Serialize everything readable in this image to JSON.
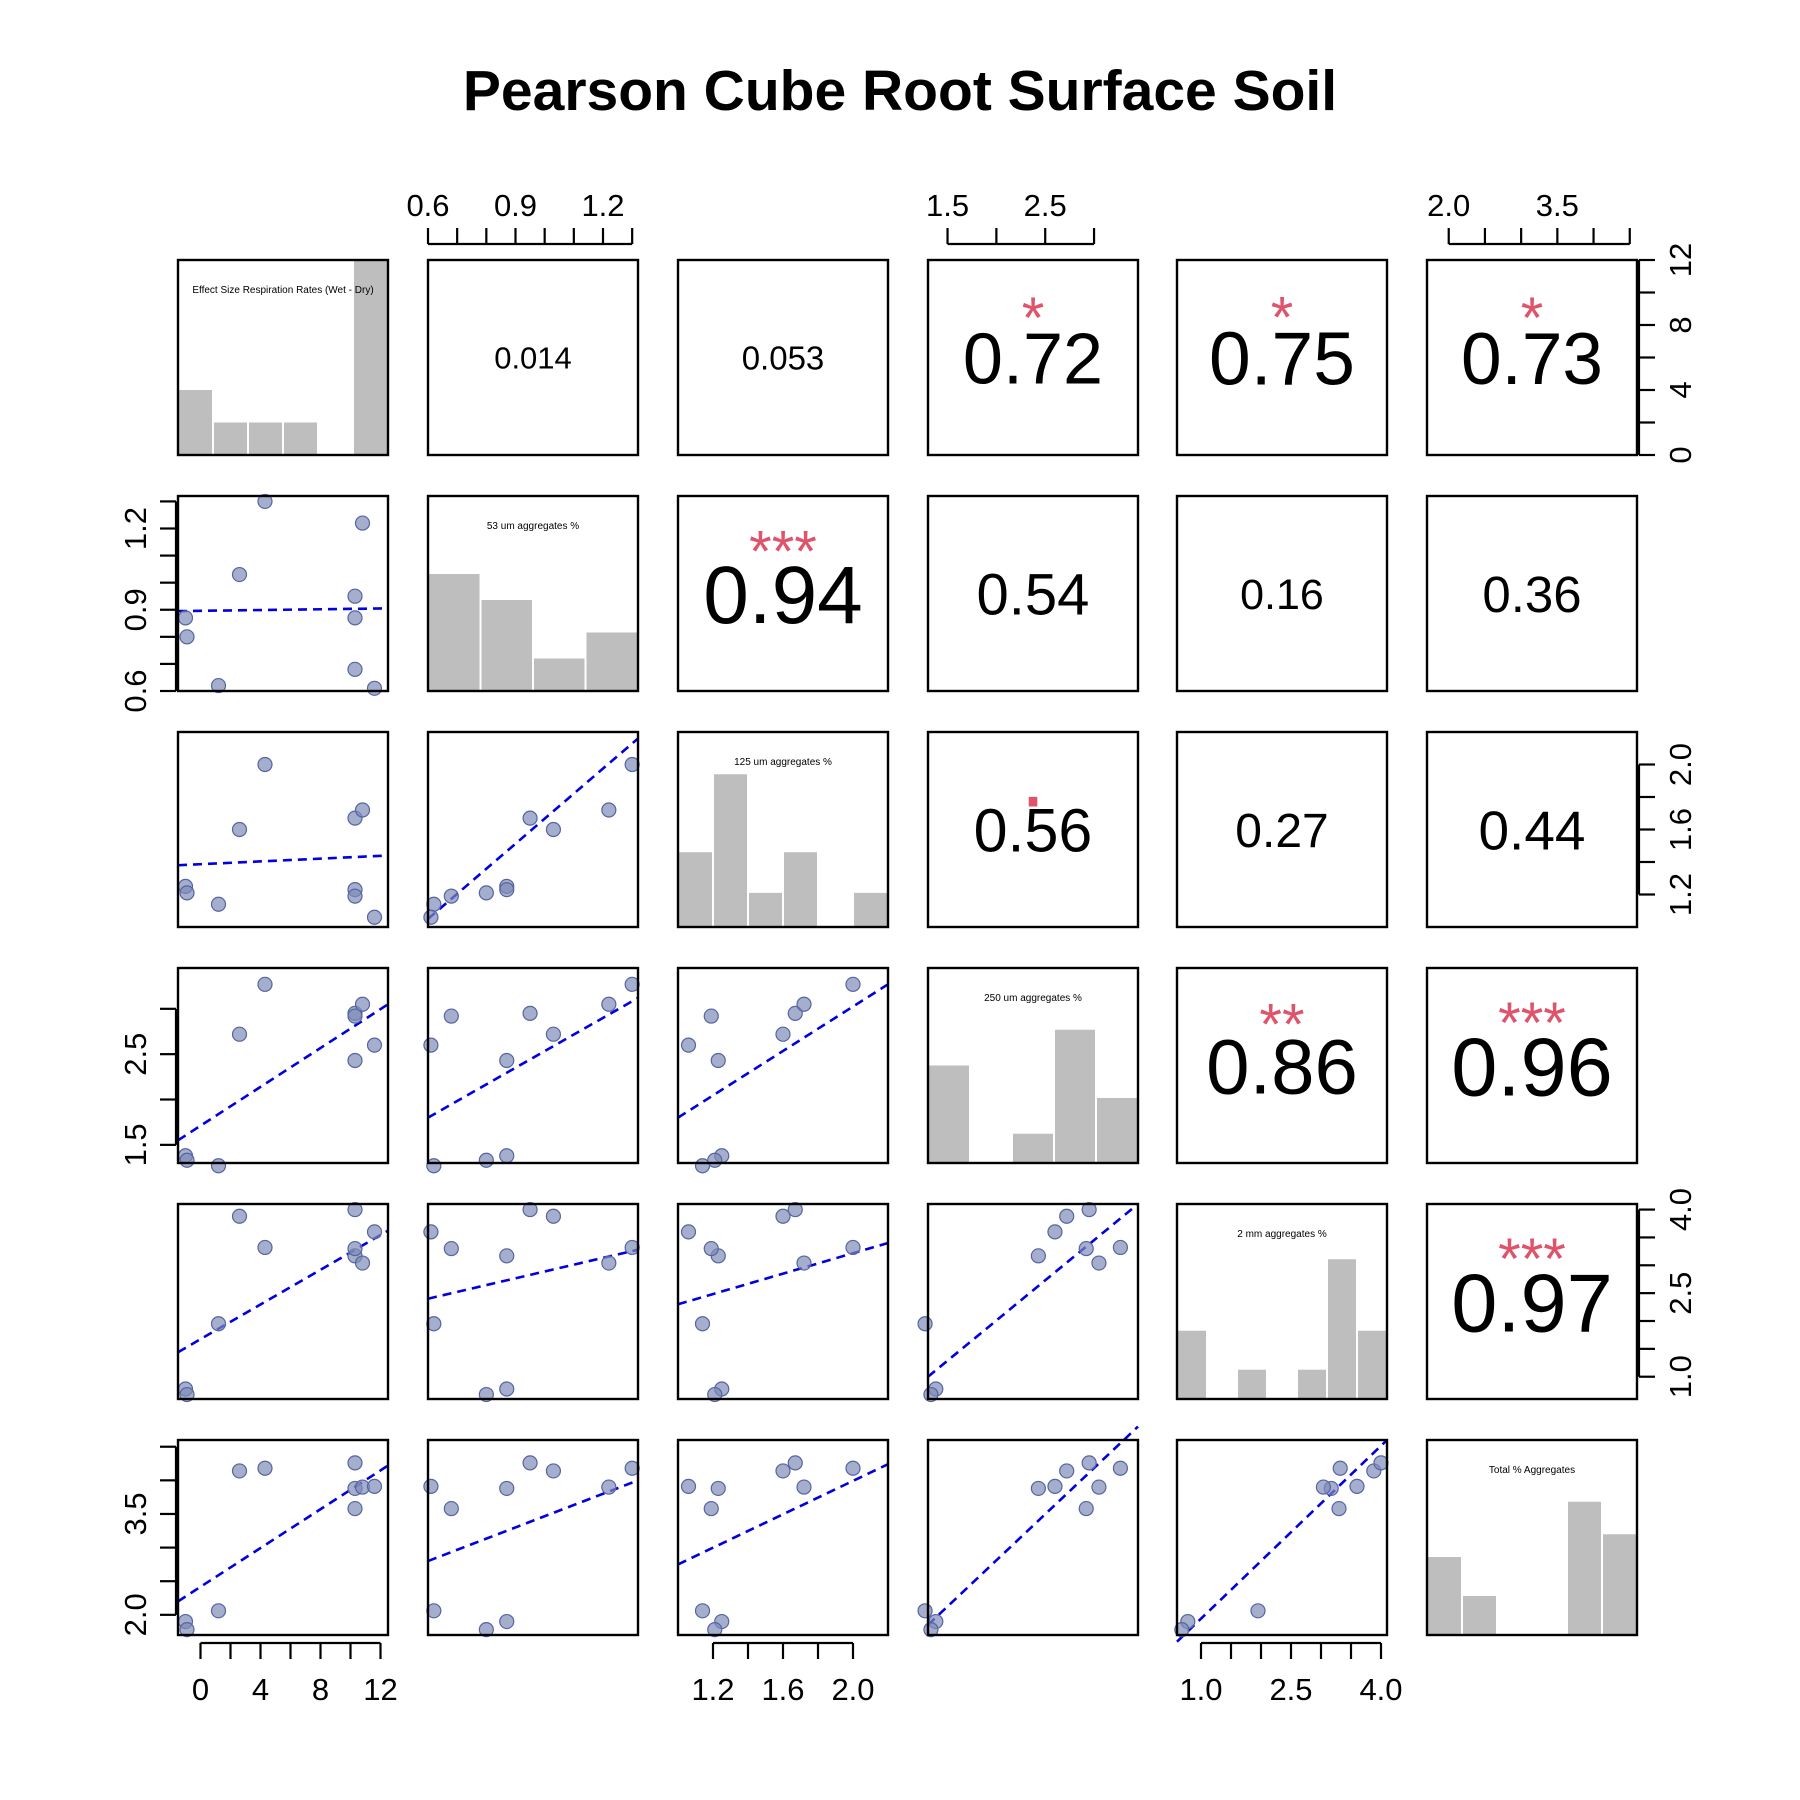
{
  "chart_data": {
    "type": "scatter",
    "title": "Pearson Cube Root Surface Soil",
    "variables": [
      "Effect Size Respiration Rates (Wet - Dry)",
      "53 um aggregates %",
      "125 um aggregates %",
      "250 um aggregates %",
      "2 mm aggregates %",
      "Total % Aggregates"
    ],
    "axes": [
      {
        "lim": [
          -1.5,
          12.5
        ],
        "ticks": [
          0,
          2,
          4,
          6,
          8,
          10,
          12
        ],
        "labels": [
          {
            "v": 0,
            "t": "0"
          },
          {
            "v": 4,
            "t": "4"
          },
          {
            "v": 8,
            "t": "8"
          },
          {
            "v": 12,
            "t": "12"
          }
        ]
      },
      {
        "lim": [
          0.6,
          1.32
        ],
        "ticks": [
          0.6,
          0.7,
          0.8,
          0.9,
          1.0,
          1.1,
          1.2,
          1.3
        ],
        "labels": [
          {
            "v": 0.6,
            "t": "0.6"
          },
          {
            "v": 0.9,
            "t": "0.9"
          },
          {
            "v": 1.2,
            "t": "1.2"
          }
        ]
      },
      {
        "lim": [
          1.0,
          2.2
        ],
        "ticks": [
          1.2,
          1.4,
          1.6,
          1.8,
          2.0
        ],
        "labels": [
          {
            "v": 1.2,
            "t": "1.2"
          },
          {
            "v": 1.6,
            "t": "1.6"
          },
          {
            "v": 2.0,
            "t": "2.0"
          }
        ]
      },
      {
        "lim": [
          1.3,
          3.45
        ],
        "ticks": [
          1.5,
          2.0,
          2.5,
          3.0
        ],
        "labels": [
          {
            "v": 1.5,
            "t": "1.5"
          },
          {
            "v": 2.5,
            "t": "2.5"
          }
        ]
      },
      {
        "lim": [
          0.6,
          4.1
        ],
        "ticks": [
          1.0,
          1.5,
          2.0,
          2.5,
          3.0,
          3.5,
          4.0
        ],
        "labels": [
          {
            "v": 1.0,
            "t": "1.0"
          },
          {
            "v": 2.5,
            "t": "2.5"
          },
          {
            "v": 4.0,
            "t": "4.0"
          }
        ]
      },
      {
        "lim": [
          1.7,
          4.6
        ],
        "ticks": [
          2.0,
          2.5,
          3.0,
          3.5,
          4.0,
          4.5
        ],
        "labels": [
          {
            "v": 2.0,
            "t": "2.0"
          },
          {
            "v": 3.5,
            "t": "3.5"
          }
        ]
      }
    ],
    "hist_labels": [
      "12",
      "8",
      "4",
      "0"
    ],
    "observations": [
      [
        -1.0,
        0.87,
        1.25,
        1.38,
        0.78,
        1.9
      ],
      [
        -0.9,
        0.8,
        1.21,
        1.33,
        0.68,
        1.78
      ],
      [
        1.2,
        0.62,
        1.14,
        1.27,
        1.95,
        2.06
      ],
      [
        2.6,
        1.03,
        1.6,
        2.72,
        3.88,
        4.14
      ],
      [
        4.3,
        1.3,
        2.0,
        3.27,
        3.32,
        4.18
      ],
      [
        10.3,
        0.95,
        1.67,
        2.95,
        4.0,
        4.26
      ],
      [
        10.3,
        0.87,
        1.23,
        2.43,
        3.17,
        3.88
      ],
      [
        10.3,
        0.68,
        1.19,
        2.92,
        3.3,
        3.58
      ],
      [
        10.8,
        1.22,
        1.72,
        3.05,
        3.04,
        3.9
      ],
      [
        11.6,
        0.61,
        1.06,
        2.6,
        3.6,
        3.91
      ]
    ],
    "fit_lines": [
      [
        null,
        [
          -1.5,
          0.895,
          12.5,
          0.905
        ],
        [
          -1.5,
          1.38,
          12.5,
          1.44
        ],
        [
          -1.5,
          1.55,
          12.5,
          3.05
        ],
        [
          -1.5,
          1.44,
          12.5,
          3.62
        ],
        [
          -1.5,
          2.2,
          12.5,
          4.22
        ]
      ],
      [
        null,
        null,
        [
          0.6,
          1.05,
          1.32,
          2.16
        ],
        [
          0.6,
          1.8,
          1.32,
          3.12
        ],
        [
          0.6,
          2.4,
          1.32,
          3.28
        ],
        [
          0.6,
          2.8,
          1.32,
          4.0
        ]
      ],
      [
        null,
        null,
        null,
        [
          1.0,
          1.8,
          2.2,
          3.27
        ],
        [
          1.0,
          2.3,
          2.2,
          3.4
        ],
        [
          1.0,
          2.75,
          2.2,
          4.24
        ]
      ],
      [
        null,
        null,
        null,
        null,
        [
          1.3,
          1.0,
          3.45,
          4.1
        ],
        [
          1.3,
          1.85,
          3.45,
          4.8
        ]
      ],
      [
        null,
        null,
        null,
        null,
        null,
        [
          0.6,
          1.6,
          4.1,
          4.6
        ]
      ]
    ],
    "correlations": [
      {
        "row": 0,
        "col": 1,
        "r": "0.014",
        "stars": "",
        "size": 31
      },
      {
        "row": 0,
        "col": 2,
        "r": "0.053",
        "stars": "",
        "size": 33
      },
      {
        "row": 0,
        "col": 3,
        "r": "0.72",
        "stars": "*",
        "size": 72
      },
      {
        "row": 0,
        "col": 4,
        "r": "0.75",
        "stars": "*",
        "size": 75
      },
      {
        "row": 0,
        "col": 5,
        "r": "0.73",
        "stars": "*",
        "size": 73
      },
      {
        "row": 1,
        "col": 2,
        "r": "0.94",
        "stars": "***",
        "size": 82
      },
      {
        "row": 1,
        "col": 3,
        "r": "0.54",
        "stars": "",
        "size": 58
      },
      {
        "row": 1,
        "col": 4,
        "r": "0.16",
        "stars": "",
        "size": 43
      },
      {
        "row": 1,
        "col": 5,
        "r": "0.36",
        "stars": "",
        "size": 51
      },
      {
        "row": 2,
        "col": 3,
        "r": "0.56",
        "stars": ".",
        "size": 61
      },
      {
        "row": 2,
        "col": 4,
        "r": "0.27",
        "stars": "",
        "size": 48
      },
      {
        "row": 2,
        "col": 5,
        "r": "0.44",
        "stars": "",
        "size": 55
      },
      {
        "row": 3,
        "col": 4,
        "r": "0.86",
        "stars": "**",
        "size": 78
      },
      {
        "row": 3,
        "col": 5,
        "r": "0.96",
        "stars": "***",
        "size": 83
      },
      {
        "row": 4,
        "col": 5,
        "r": "0.97",
        "stars": "***",
        "size": 83
      }
    ],
    "histograms": [
      [
        4,
        2,
        2,
        2,
        0,
        12
      ],
      [
        7.2,
        5.6,
        2.0,
        3.6
      ],
      [
        4.6,
        9.4,
        2.1,
        4.6,
        0,
        2.1
      ],
      [
        6.0,
        0,
        1.8,
        8.2,
        4.0
      ],
      [
        4.2,
        0,
        1.8,
        0,
        1.8,
        8.6,
        4.2
      ],
      [
        4.8,
        2.4,
        0,
        0,
        8.2,
        6.2
      ]
    ],
    "colors": {
      "points": "#7f8bb8",
      "fit_line": "#0000e0",
      "bars": "#bebebe",
      "stars": "#df536b"
    }
  }
}
